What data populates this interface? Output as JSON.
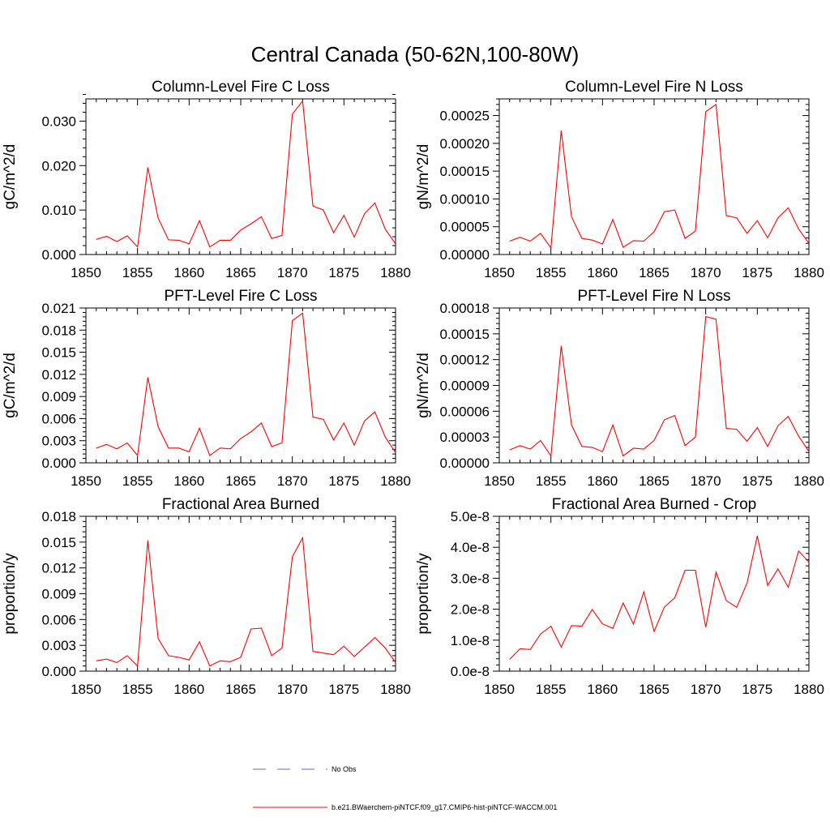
{
  "figure": {
    "title": "Central Canada (50-62N,100-80W)"
  },
  "chart_data": [
    {
      "type": "line",
      "title": "Column-Level Fire C Loss",
      "ylabel": "gC/m^2/d",
      "xlabel": "",
      "xlim": [
        1850,
        1880
      ],
      "ylim": [
        0,
        0.035
      ],
      "xticks": [
        1850,
        1855,
        1860,
        1865,
        1870,
        1875,
        1880
      ],
      "xtick_labels": [
        "1850",
        "1855",
        "1860",
        "1865",
        "1870",
        "1875",
        "1880"
      ],
      "yticks": [
        0,
        0.01,
        0.02,
        0.03
      ],
      "ytick_labels": [
        "0.000",
        "0.010",
        "0.020",
        "0.030"
      ],
      "x": [
        1851,
        1852,
        1853,
        1854,
        1855,
        1856,
        1857,
        1858,
        1859,
        1860,
        1861,
        1862,
        1863,
        1864,
        1865,
        1866,
        1867,
        1868,
        1869,
        1870,
        1871,
        1872,
        1873,
        1874,
        1875,
        1876,
        1877,
        1878,
        1879,
        1880
      ],
      "series": [
        {
          "values": [
            0.0034,
            0.0041,
            0.0029,
            0.0042,
            0.0017,
            0.0196,
            0.0082,
            0.0033,
            0.0032,
            0.0024,
            0.0076,
            0.0017,
            0.0032,
            0.0032,
            0.0055,
            0.0069,
            0.0085,
            0.0036,
            0.0043,
            0.0316,
            0.0345,
            0.0109,
            0.01,
            0.0049,
            0.0088,
            0.0039,
            0.0092,
            0.0116,
            0.0057,
            0.0024
          ],
          "color": "#ff0000"
        }
      ]
    },
    {
      "type": "line",
      "title": "Column-Level Fire N Loss",
      "ylabel": "gN/m^2/d",
      "xlabel": "",
      "xlim": [
        1850,
        1880
      ],
      "ylim": [
        0,
        0.00028
      ],
      "xticks": [
        1850,
        1855,
        1860,
        1865,
        1870,
        1875,
        1880
      ],
      "xtick_labels": [
        "1850",
        "1855",
        "1860",
        "1865",
        "1870",
        "1875",
        "1880"
      ],
      "yticks": [
        0,
        5e-05,
        0.0001,
        0.00015,
        0.0002,
        0.00025
      ],
      "ytick_labels": [
        "0.00000",
        "0.00005",
        "0.00010",
        "0.00015",
        "0.00020",
        "0.00025"
      ],
      "x": [
        1851,
        1852,
        1853,
        1854,
        1855,
        1856,
        1857,
        1858,
        1859,
        1860,
        1861,
        1862,
        1863,
        1864,
        1865,
        1866,
        1867,
        1868,
        1869,
        1870,
        1871,
        1872,
        1873,
        1874,
        1875,
        1876,
        1877,
        1878,
        1879,
        1880
      ],
      "series": [
        {
          "values": [
            2.4e-05,
            3.1e-05,
            2.4e-05,
            3.8e-05,
            1.2e-05,
            0.000223,
            6.8e-05,
            2.9e-05,
            2.6e-05,
            1.9e-05,
            6.3e-05,
            1.3e-05,
            2.5e-05,
            2.4e-05,
            4.1e-05,
            7.7e-05,
            8e-05,
            2.9e-05,
            4.2e-05,
            0.000257,
            0.00027,
            7e-05,
            6.6e-05,
            3.8e-05,
            6.1e-05,
            3e-05,
            6.6e-05,
            8.4e-05,
            4.6e-05,
            2e-05
          ],
          "color": "#ff0000"
        }
      ]
    },
    {
      "type": "line",
      "title": "PFT-Level Fire C Loss",
      "ylabel": "gC/m^2/d",
      "xlabel": "",
      "xlim": [
        1850,
        1880
      ],
      "ylim": [
        0,
        0.021
      ],
      "xticks": [
        1850,
        1855,
        1860,
        1865,
        1870,
        1875,
        1880
      ],
      "xtick_labels": [
        "1850",
        "1855",
        "1860",
        "1865",
        "1870",
        "1875",
        "1880"
      ],
      "yticks": [
        0,
        0.003,
        0.006,
        0.009,
        0.012,
        0.015,
        0.018,
        0.021
      ],
      "ytick_labels": [
        "0.000",
        "0.003",
        "0.006",
        "0.009",
        "0.012",
        "0.015",
        "0.018",
        "0.021"
      ],
      "x": [
        1851,
        1852,
        1853,
        1854,
        1855,
        1856,
        1857,
        1858,
        1859,
        1860,
        1861,
        1862,
        1863,
        1864,
        1865,
        1866,
        1867,
        1868,
        1869,
        1870,
        1871,
        1872,
        1873,
        1874,
        1875,
        1876,
        1877,
        1878,
        1879,
        1880
      ],
      "series": [
        {
          "values": [
            0.002,
            0.0025,
            0.0019,
            0.0027,
            0.001,
            0.0116,
            0.0049,
            0.002,
            0.002,
            0.0015,
            0.0047,
            0.001,
            0.002,
            0.0019,
            0.0033,
            0.0042,
            0.0054,
            0.0022,
            0.0027,
            0.0193,
            0.0203,
            0.0062,
            0.0059,
            0.0031,
            0.0054,
            0.0024,
            0.0057,
            0.0069,
            0.0035,
            0.0014
          ],
          "color": "#ff0000"
        }
      ]
    },
    {
      "type": "line",
      "title": "PFT-Level Fire N Loss",
      "ylabel": "gN/m^2/d",
      "xlabel": "",
      "xlim": [
        1850,
        1880
      ],
      "ylim": [
        0,
        0.00018
      ],
      "xticks": [
        1850,
        1855,
        1860,
        1865,
        1870,
        1875,
        1880
      ],
      "xtick_labels": [
        "1850",
        "1855",
        "1860",
        "1865",
        "1870",
        "1875",
        "1880"
      ],
      "yticks": [
        0,
        3e-05,
        6e-05,
        9e-05,
        0.00012,
        0.00015,
        0.00018
      ],
      "ytick_labels": [
        "0.00000",
        "0.00003",
        "0.00006",
        "0.00009",
        "0.00012",
        "0.00015",
        "0.00018"
      ],
      "x": [
        1851,
        1852,
        1853,
        1854,
        1855,
        1856,
        1857,
        1858,
        1859,
        1860,
        1861,
        1862,
        1863,
        1864,
        1865,
        1866,
        1867,
        1868,
        1869,
        1870,
        1871,
        1872,
        1873,
        1874,
        1875,
        1876,
        1877,
        1878,
        1879,
        1880
      ],
      "series": [
        {
          "values": [
            1.5e-05,
            2e-05,
            1.6e-05,
            2.6e-05,
            8e-06,
            0.000136,
            4.4e-05,
            1.9e-05,
            1.8e-05,
            1.3e-05,
            4.4e-05,
            8e-06,
            1.7e-05,
            1.6e-05,
            2.6e-05,
            5e-05,
            5.5e-05,
            2e-05,
            3e-05,
            0.00017,
            0.000167,
            4e-05,
            3.9e-05,
            2.5e-05,
            4.1e-05,
            1.9e-05,
            4.3e-05,
            5.4e-05,
            3.1e-05,
            1.3e-05
          ],
          "color": "#ff0000"
        }
      ]
    },
    {
      "type": "line",
      "title": "Fractional Area Burned",
      "ylabel": "proportion/y",
      "xlabel": "",
      "xlim": [
        1850,
        1880
      ],
      "ylim": [
        0,
        0.018
      ],
      "xticks": [
        1850,
        1855,
        1860,
        1865,
        1870,
        1875,
        1880
      ],
      "xtick_labels": [
        "1850",
        "1855",
        "1860",
        "1865",
        "1870",
        "1875",
        "1880"
      ],
      "yticks": [
        0,
        0.003,
        0.006,
        0.009,
        0.012,
        0.015,
        0.018
      ],
      "ytick_labels": [
        "0.000",
        "0.003",
        "0.006",
        "0.009",
        "0.012",
        "0.015",
        "0.018"
      ],
      "x": [
        1851,
        1852,
        1853,
        1854,
        1855,
        1856,
        1857,
        1858,
        1859,
        1860,
        1861,
        1862,
        1863,
        1864,
        1865,
        1866,
        1867,
        1868,
        1869,
        1870,
        1871,
        1872,
        1873,
        1874,
        1875,
        1876,
        1877,
        1878,
        1879,
        1880
      ],
      "series": [
        {
          "values": [
            0.0012,
            0.0014,
            0.001,
            0.0018,
            0.0006,
            0.0152,
            0.0038,
            0.0018,
            0.0016,
            0.0013,
            0.0034,
            0.0006,
            0.0012,
            0.0011,
            0.0016,
            0.0049,
            0.005,
            0.0018,
            0.0027,
            0.0133,
            0.0155,
            0.0023,
            0.0021,
            0.0019,
            0.0029,
            0.0017,
            0.0028,
            0.0039,
            0.0027,
            0.001
          ],
          "color": "#ff0000"
        }
      ]
    },
    {
      "type": "line",
      "title": "Fractional Area Burned - Crop",
      "ylabel": "proportion/y",
      "xlabel": "",
      "xlim": [
        1850,
        1880
      ],
      "ylim": [
        0,
        5e-08
      ],
      "xticks": [
        1850,
        1855,
        1860,
        1865,
        1870,
        1875,
        1880
      ],
      "xtick_labels": [
        "1850",
        "1855",
        "1860",
        "1865",
        "1870",
        "1875",
        "1880"
      ],
      "yticks": [
        0,
        1e-08,
        2e-08,
        3e-08,
        4e-08,
        5e-08
      ],
      "ytick_labels": [
        "0.0e-8",
        "1.0e-8",
        "2.0e-8",
        "3.0e-8",
        "4.0e-8",
        "5.0e-8"
      ],
      "x": [
        1851,
        1852,
        1853,
        1854,
        1855,
        1856,
        1857,
        1858,
        1859,
        1860,
        1861,
        1862,
        1863,
        1864,
        1865,
        1866,
        1867,
        1868,
        1869,
        1870,
        1871,
        1872,
        1873,
        1874,
        1875,
        1876,
        1877,
        1878,
        1879,
        1880
      ],
      "series": [
        {
          "values": [
            3.8e-09,
            7.2e-09,
            7e-09,
            1.2e-08,
            1.45e-08,
            7.8e-09,
            1.47e-08,
            1.45e-08,
            1.99e-08,
            1.53e-08,
            1.38e-08,
            2.2e-08,
            1.52e-08,
            2.56e-08,
            1.28e-08,
            2.07e-08,
            2.37e-08,
            3.26e-08,
            3.26e-08,
            1.42e-08,
            3.2e-08,
            2.28e-08,
            2.06e-08,
            2.84e-08,
            4.37e-08,
            2.77e-08,
            3.3e-08,
            2.71e-08,
            3.88e-08,
            3.52e-08
          ],
          "color": "#ff0000"
        }
      ]
    }
  ],
  "legend": {
    "entries": [
      {
        "label": "No Obs",
        "color": "#6666cc",
        "style": "dashed"
      },
      {
        "label": "b.e21.BWaerchem-piNTCF.f09_g17.CMIP6-hist-piNTCF-WACCM.001",
        "color": "#ff0000",
        "style": "solid"
      }
    ]
  }
}
